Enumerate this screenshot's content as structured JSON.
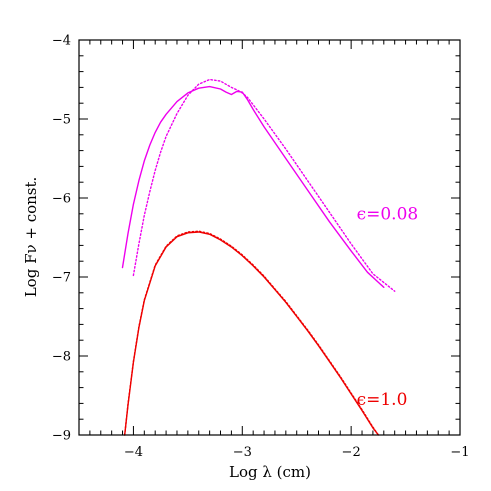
{
  "chart_data": {
    "type": "line",
    "xlabel": "Log λ (cm)",
    "ylabel": "Log Fν + const.",
    "xlim": [
      -4.5,
      -1.0
    ],
    "ylim": [
      -9.0,
      -4.0
    ],
    "x_ticks": [
      -4,
      -3,
      -2,
      -1
    ],
    "x_tick_labels": [
      "−4",
      "−3",
      "−2",
      "−1"
    ],
    "y_ticks": [
      -9,
      -8,
      -7,
      -6,
      -5,
      -4
    ],
    "y_tick_labels": [
      "−9",
      "−8",
      "−7",
      "−6",
      "−5",
      "−4"
    ],
    "grid": false,
    "annotations": [
      {
        "text": "ϵ=0.08",
        "color": "#ee00ee",
        "x": -1.95,
        "y": -6.27
      },
      {
        "text": "ϵ=1.0",
        "color": "#ee0000",
        "x": -1.95,
        "y": -8.62
      }
    ],
    "series": [
      {
        "color": "#ee00ee",
        "style": "solid",
        "x": [
          -4.1,
          -4.05,
          -4.0,
          -3.95,
          -3.9,
          -3.85,
          -3.8,
          -3.75,
          -3.7,
          -3.6,
          -3.5,
          -3.4,
          -3.3,
          -3.2,
          -3.15,
          -3.1,
          -3.05,
          -3.0,
          -2.95,
          -2.9,
          -2.8,
          -2.6,
          -2.4,
          -2.2,
          -2.0,
          -1.85,
          -1.7
        ],
        "y": [
          -6.88,
          -6.45,
          -6.08,
          -5.78,
          -5.53,
          -5.33,
          -5.17,
          -5.04,
          -4.94,
          -4.78,
          -4.67,
          -4.61,
          -4.59,
          -4.62,
          -4.66,
          -4.69,
          -4.65,
          -4.66,
          -4.76,
          -4.88,
          -5.1,
          -5.5,
          -5.9,
          -6.3,
          -6.67,
          -6.94,
          -7.13
        ]
      },
      {
        "color": "#ee00ee",
        "style": "dotted",
        "x": [
          -4.0,
          -3.95,
          -3.9,
          -3.85,
          -3.8,
          -3.75,
          -3.7,
          -3.6,
          -3.5,
          -3.4,
          -3.3,
          -3.2,
          -3.1,
          -3.05,
          -3.0,
          -2.95,
          -2.9,
          -2.8,
          -2.6,
          -2.4,
          -2.2,
          -2.0,
          -1.8,
          -1.6
        ],
        "y": [
          -6.98,
          -6.58,
          -6.22,
          -5.92,
          -5.65,
          -5.42,
          -5.22,
          -4.93,
          -4.7,
          -4.56,
          -4.5,
          -4.52,
          -4.6,
          -4.63,
          -4.67,
          -4.73,
          -4.82,
          -5.0,
          -5.38,
          -5.78,
          -6.18,
          -6.58,
          -6.96,
          -7.18
        ]
      },
      {
        "color": "#ee0000",
        "style": "solid",
        "x": [
          -4.08,
          -4.05,
          -4.0,
          -3.95,
          -3.9,
          -3.8,
          -3.7,
          -3.6,
          -3.5,
          -3.4,
          -3.3,
          -3.2,
          -3.1,
          -3.0,
          -2.9,
          -2.8,
          -2.7,
          -2.6,
          -2.5,
          -2.4,
          -2.3,
          -2.2,
          -2.1,
          -2.0,
          -1.9,
          -1.8,
          -1.75
        ],
        "y": [
          -9.0,
          -8.62,
          -8.08,
          -7.64,
          -7.3,
          -6.86,
          -6.62,
          -6.49,
          -6.44,
          -6.43,
          -6.46,
          -6.53,
          -6.62,
          -6.73,
          -6.86,
          -7.0,
          -7.16,
          -7.32,
          -7.5,
          -7.68,
          -7.87,
          -8.07,
          -8.27,
          -8.48,
          -8.69,
          -8.91,
          -9.0
        ]
      },
      {
        "color": "#ee0000",
        "style": "dotted",
        "x": [
          -4.08,
          -4.05,
          -4.0,
          -3.95,
          -3.9,
          -3.8,
          -3.7,
          -3.6,
          -3.5,
          -3.4,
          -3.3,
          -3.2,
          -3.1,
          -3.0,
          -2.9,
          -2.8,
          -2.7,
          -2.6,
          -2.5,
          -2.4,
          -2.3,
          -2.2,
          -2.1,
          -2.0,
          -1.9,
          -1.8,
          -1.75
        ],
        "y": [
          -9.0,
          -8.61,
          -8.07,
          -7.63,
          -7.29,
          -6.85,
          -6.61,
          -6.48,
          -6.43,
          -6.42,
          -6.45,
          -6.52,
          -6.61,
          -6.72,
          -6.85,
          -6.99,
          -7.15,
          -7.31,
          -7.49,
          -7.67,
          -7.86,
          -8.06,
          -8.26,
          -8.47,
          -8.68,
          -8.9,
          -9.0
        ]
      }
    ]
  }
}
